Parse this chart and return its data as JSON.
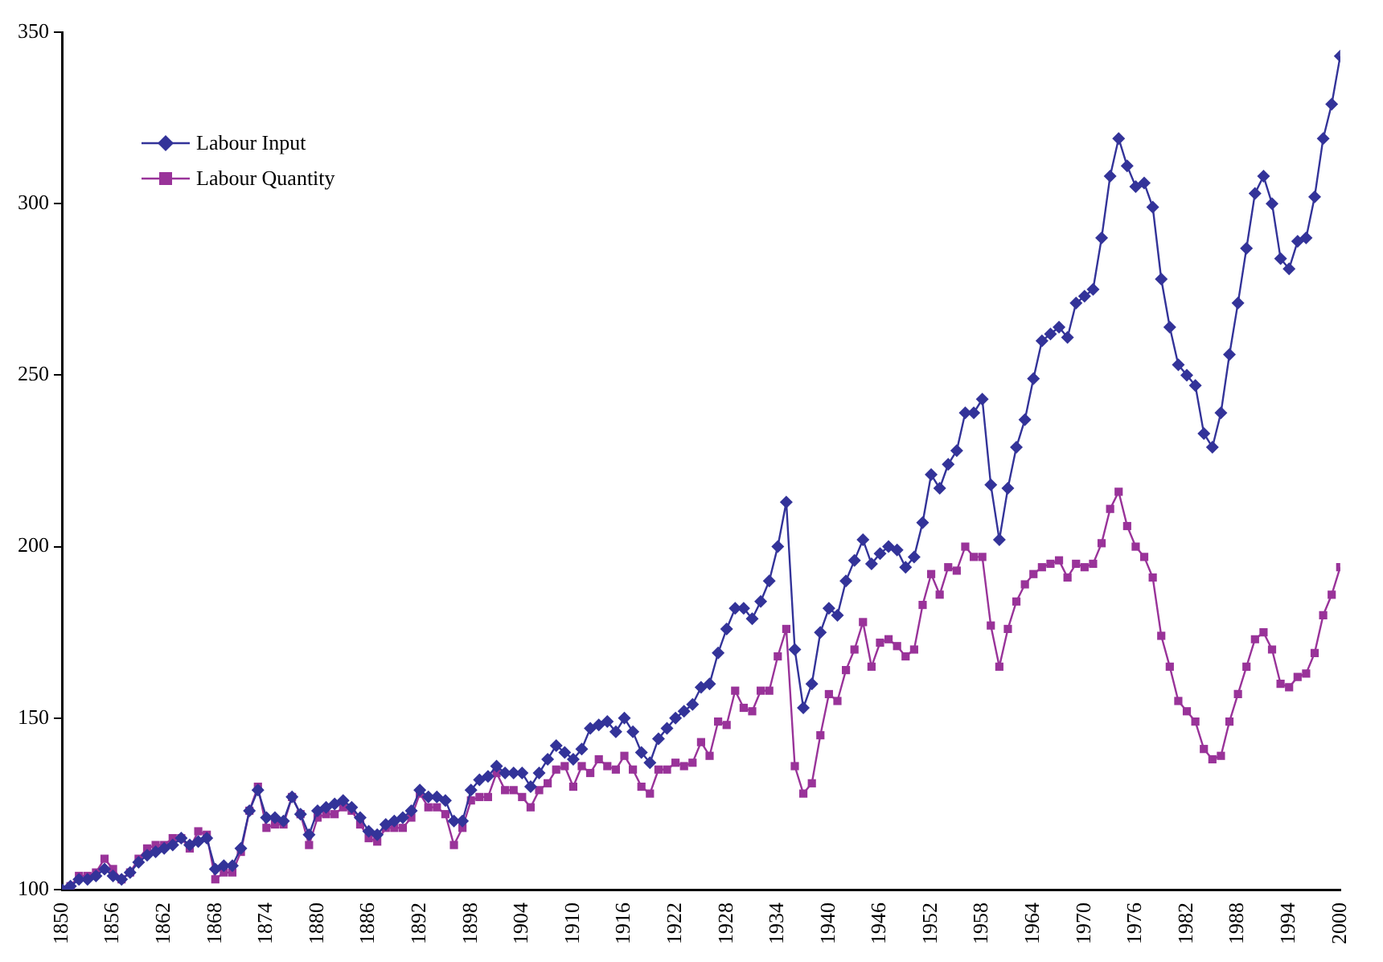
{
  "chart_data": {
    "type": "line",
    "x": [
      1850,
      1851,
      1852,
      1853,
      1854,
      1855,
      1856,
      1857,
      1858,
      1859,
      1860,
      1861,
      1862,
      1863,
      1864,
      1865,
      1866,
      1867,
      1868,
      1869,
      1870,
      1871,
      1872,
      1873,
      1874,
      1875,
      1876,
      1877,
      1878,
      1879,
      1880,
      1881,
      1882,
      1883,
      1884,
      1885,
      1886,
      1887,
      1888,
      1889,
      1890,
      1891,
      1892,
      1893,
      1894,
      1895,
      1896,
      1897,
      1898,
      1899,
      1900,
      1901,
      1902,
      1903,
      1904,
      1905,
      1906,
      1907,
      1908,
      1909,
      1910,
      1911,
      1912,
      1913,
      1914,
      1915,
      1916,
      1917,
      1918,
      1919,
      1920,
      1921,
      1922,
      1923,
      1924,
      1925,
      1926,
      1927,
      1928,
      1929,
      1930,
      1931,
      1932,
      1933,
      1934,
      1935,
      1936,
      1937,
      1938,
      1939,
      1940,
      1941,
      1942,
      1943,
      1944,
      1945,
      1946,
      1947,
      1948,
      1949,
      1950,
      1951,
      1952,
      1953,
      1954,
      1955,
      1956,
      1957,
      1958,
      1959,
      1960,
      1961,
      1962,
      1963,
      1964,
      1965,
      1966,
      1967,
      1968,
      1969,
      1970,
      1971,
      1972,
      1973,
      1974,
      1975,
      1976,
      1977,
      1978,
      1979,
      1980,
      1981,
      1982,
      1983,
      1984,
      1985,
      1986,
      1987,
      1988,
      1989,
      1990,
      1991,
      1992,
      1993,
      1994,
      1995,
      1996,
      1997,
      1998,
      1999,
      2000
    ],
    "series": [
      {
        "name": "Labour Input",
        "color": "#333399",
        "marker": "diamond",
        "values": [
          100,
          101,
          103,
          103,
          104,
          106,
          104,
          103,
          105,
          108,
          110,
          111,
          112,
          113,
          115,
          113,
          114,
          115,
          106,
          107,
          107,
          112,
          123,
          129,
          121,
          121,
          120,
          127,
          122,
          116,
          123,
          124,
          125,
          126,
          124,
          121,
          117,
          116,
          119,
          120,
          121,
          123,
          129,
          127,
          127,
          126,
          120,
          120,
          129,
          132,
          133,
          136,
          134,
          134,
          134,
          130,
          134,
          138,
          142,
          140,
          138,
          141,
          147,
          148,
          149,
          146,
          150,
          146,
          140,
          137,
          144,
          147,
          150,
          152,
          154,
          159,
          160,
          169,
          176,
          182,
          182,
          179,
          184,
          190,
          200,
          213,
          170,
          153,
          160,
          175,
          182,
          180,
          190,
          196,
          202,
          195,
          198,
          200,
          199,
          194,
          197,
          207,
          221,
          217,
          224,
          228,
          239,
          239,
          243,
          218,
          202,
          217,
          229,
          237,
          249,
          260,
          262,
          264,
          261,
          271,
          273,
          275,
          290,
          308,
          319,
          311,
          305,
          306,
          299,
          278,
          264,
          253,
          250,
          247,
          233,
          229,
          239,
          256,
          271,
          287,
          303,
          308,
          300,
          284,
          281,
          289,
          290,
          302,
          319,
          329,
          343
        ]
      },
      {
        "name": "Labour Quantity",
        "color": "#993399",
        "marker": "square",
        "values": [
          100,
          101,
          104,
          104,
          105,
          109,
          106,
          103,
          105,
          109,
          112,
          113,
          113,
          115,
          115,
          112,
          117,
          116,
          103,
          105,
          105,
          111,
          123,
          130,
          118,
          119,
          119,
          127,
          122,
          113,
          121,
          122,
          122,
          124,
          123,
          119,
          115,
          114,
          118,
          118,
          118,
          121,
          128,
          124,
          124,
          122,
          113,
          118,
          126,
          127,
          127,
          134,
          129,
          129,
          127,
          124,
          129,
          131,
          135,
          136,
          130,
          136,
          134,
          138,
          136,
          135,
          139,
          135,
          130,
          128,
          135,
          135,
          137,
          136,
          137,
          143,
          139,
          149,
          148,
          158,
          153,
          152,
          158,
          158,
          168,
          176,
          136,
          128,
          131,
          145,
          157,
          155,
          164,
          170,
          178,
          165,
          172,
          173,
          171,
          168,
          170,
          183,
          192,
          186,
          194,
          193,
          200,
          197,
          197,
          177,
          165,
          176,
          184,
          189,
          192,
          194,
          195,
          196,
          191,
          195,
          194,
          195,
          201,
          211,
          216,
          206,
          200,
          197,
          191,
          174,
          165,
          155,
          152,
          149,
          141,
          138,
          139,
          149,
          157,
          165,
          173,
          175,
          170,
          160,
          159,
          162,
          163,
          169,
          180,
          186,
          194
        ]
      }
    ],
    "xlim": [
      1850,
      2000
    ],
    "xticks": [
      1850,
      1856,
      1862,
      1868,
      1874,
      1880,
      1886,
      1892,
      1898,
      1904,
      1910,
      1916,
      1922,
      1928,
      1934,
      1940,
      1946,
      1952,
      1958,
      1964,
      1970,
      1976,
      1982,
      1988,
      1994,
      2000
    ],
    "ylim": [
      100,
      350
    ],
    "yticks": [
      100,
      150,
      200,
      250,
      300,
      350
    ],
    "grid": false,
    "legend": "top left",
    "line_style": "solid"
  }
}
